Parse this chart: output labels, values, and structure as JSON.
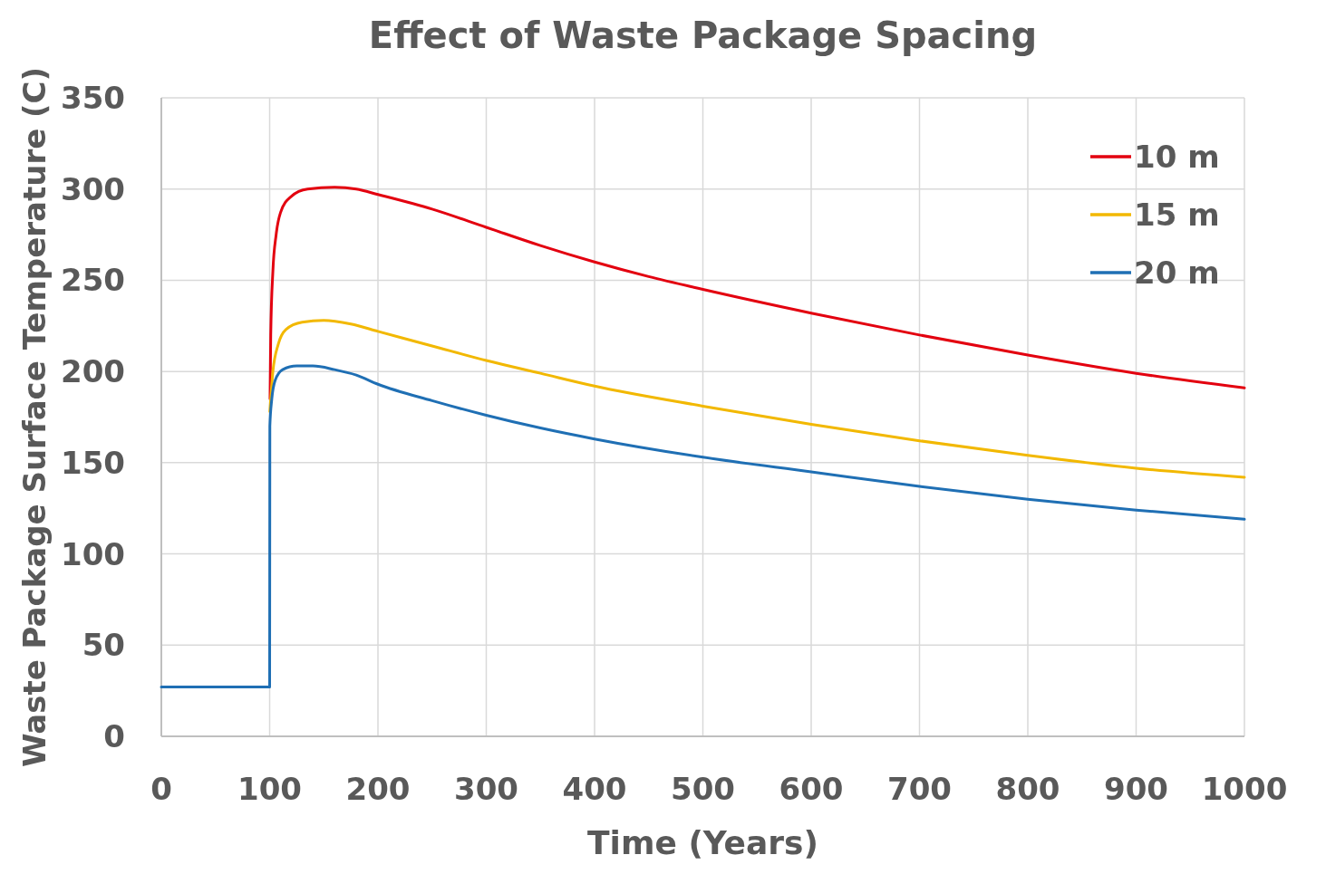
{
  "chart_data": {
    "type": "line",
    "title": "Effect of Waste Package Spacing",
    "xlabel": "Time (Years)",
    "ylabel": "Waste Package Surface Temperature (C)",
    "xlim": [
      0,
      1000
    ],
    "xticks": [
      0,
      100,
      200,
      300,
      400,
      500,
      600,
      700,
      800,
      900,
      1000
    ],
    "ylim": [
      0,
      350
    ],
    "yticks": [
      0,
      50,
      100,
      150,
      200,
      250,
      300,
      350
    ],
    "grid": true,
    "legend": "top right",
    "marker": "none",
    "line_style": "solid",
    "series": [
      {
        "name": "10 m",
        "color": "#e3000f",
        "x": [
          100.4,
          101,
          103,
          106,
          110,
          120,
          135,
          160,
          180,
          200,
          250,
          300,
          350,
          400,
          450,
          500,
          600,
          700,
          800,
          900,
          1000
        ],
        "values": [
          185,
          220,
          255,
          275,
          287,
          296,
          300,
          301,
          300,
          297,
          289,
          279,
          269,
          260,
          252,
          245,
          232,
          220,
          209,
          199,
          191
        ]
      },
      {
        "name": "15 m",
        "color": "#f2b800",
        "x": [
          100.2,
          103,
          108,
          115,
          130,
          150,
          175,
          200,
          250,
          300,
          350,
          400,
          500,
          600,
          700,
          800,
          900,
          1000
        ],
        "values": [
          178,
          200,
          215,
          223,
          227,
          228,
          226,
          222,
          214,
          206,
          199,
          192,
          181,
          171,
          162,
          154,
          147,
          142
        ]
      },
      {
        "name": "20 m",
        "color": "#1f6fb4",
        "x": [
          0,
          100,
          100.2,
          102,
          105,
          112,
          125,
          140,
          160,
          180,
          200,
          250,
          300,
          350,
          400,
          500,
          600,
          700,
          800,
          900,
          1000
        ],
        "values": [
          27,
          27,
          170,
          185,
          195,
          201,
          203,
          203,
          201,
          198,
          193,
          184,
          176,
          169,
          163,
          153,
          145,
          137,
          130,
          124,
          119
        ]
      }
    ]
  }
}
